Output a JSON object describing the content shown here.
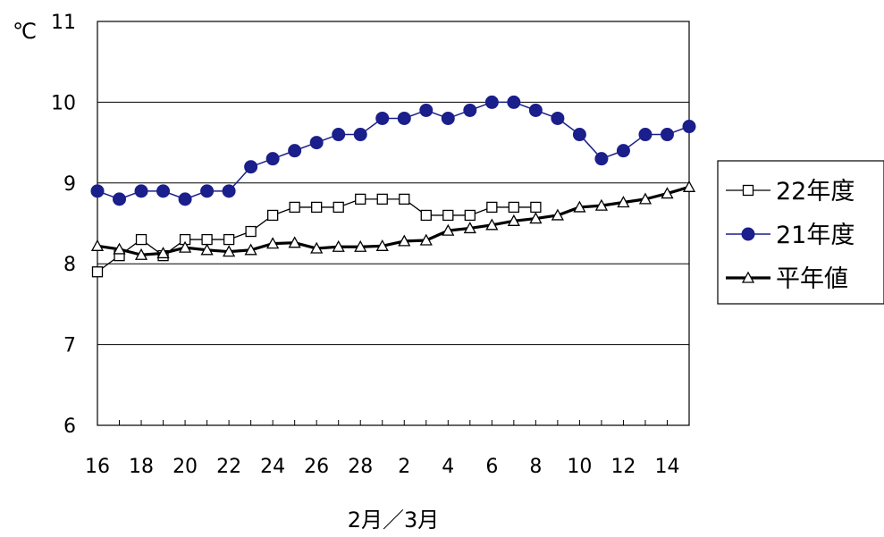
{
  "chart_data": {
    "type": "line",
    "unit_label": "℃",
    "xlabel": "2月／3月",
    "ylabel": "",
    "ylim": [
      6,
      11
    ],
    "yticks": [
      6,
      7,
      8,
      9,
      10,
      11
    ],
    "grid": true,
    "legend_position": "right",
    "categories": [
      "16",
      "17",
      "18",
      "19",
      "20",
      "21",
      "22",
      "23",
      "24",
      "25",
      "26",
      "27",
      "28",
      "29",
      "2",
      "3",
      "4",
      "5",
      "6",
      "7",
      "8",
      "9",
      "10",
      "11",
      "12",
      "13",
      "14",
      "15"
    ],
    "xtick_labels": [
      "16",
      "18",
      "20",
      "22",
      "24",
      "26",
      "28",
      "2",
      "4",
      "6",
      "8",
      "10",
      "12",
      "14"
    ],
    "series": [
      {
        "name": "22年度",
        "marker": "square-open",
        "color": "#000000",
        "values": [
          7.9,
          8.1,
          8.3,
          8.1,
          8.3,
          8.3,
          8.3,
          8.4,
          8.6,
          8.7,
          8.7,
          8.7,
          8.8,
          8.8,
          8.8,
          8.6,
          8.6,
          8.6,
          8.7,
          8.7,
          8.7,
          null,
          null,
          null,
          null,
          null,
          null,
          null
        ]
      },
      {
        "name": "21年度",
        "marker": "circle-filled",
        "color": "#1a1f8c",
        "values": [
          8.9,
          8.8,
          8.9,
          8.9,
          8.8,
          8.9,
          8.9,
          9.2,
          9.3,
          9.4,
          9.5,
          9.6,
          9.6,
          9.8,
          9.8,
          9.9,
          9.8,
          9.9,
          10.0,
          10.0,
          9.9,
          9.8,
          9.6,
          9.3,
          9.4,
          9.6,
          9.6,
          9.7
        ]
      },
      {
        "name": "平年値",
        "marker": "triangle-open",
        "color": "#000000",
        "values": [
          8.22,
          8.18,
          8.11,
          8.13,
          8.2,
          8.17,
          8.15,
          8.17,
          8.25,
          8.26,
          8.19,
          8.21,
          8.21,
          8.22,
          8.28,
          8.29,
          8.41,
          8.44,
          8.48,
          8.53,
          8.56,
          8.6,
          8.7,
          8.72,
          8.76,
          8.8,
          8.87,
          8.95
        ]
      }
    ]
  }
}
